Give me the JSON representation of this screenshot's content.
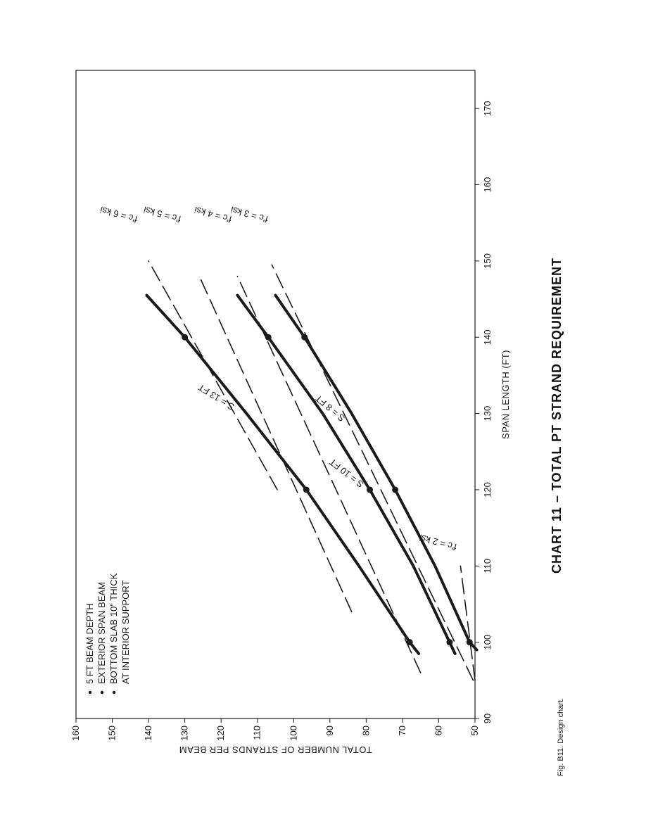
{
  "chart_data": {
    "type": "line",
    "title": "CHART 11 – TOTAL PT STRAND REQUIREMENT",
    "xlabel": "SPAN LENGTH (FT)",
    "ylabel": "TOTAL NUMBER OF STRANDS PER BEAM",
    "xlim": [
      90,
      175
    ],
    "ylim": [
      50,
      160
    ],
    "xticks": [
      90,
      100,
      110,
      120,
      130,
      140,
      150,
      160,
      170
    ],
    "yticks": [
      50,
      60,
      70,
      80,
      90,
      100,
      110,
      120,
      130,
      140,
      150,
      160
    ],
    "grid": false,
    "notes": [
      "5 FT BEAM DEPTH",
      "EXTERIOR SPAN BEAM",
      "BOTTOM SLAB 10\" THICK",
      "AT INTERIOR SUPPORT"
    ],
    "series": [
      {
        "name": "S = 13 FT",
        "style": "solid",
        "points": [
          [
            98.5,
            65.5
          ],
          [
            100,
            68
          ],
          [
            110,
            82
          ],
          [
            120,
            96.5
          ],
          [
            130,
            113
          ],
          [
            140,
            130
          ],
          [
            145.5,
            140.5
          ]
        ],
        "markers": [
          [
            100,
            68
          ],
          [
            120,
            96.5
          ],
          [
            140,
            130
          ]
        ]
      },
      {
        "name": "S = 10 FT",
        "style": "solid",
        "points": [
          [
            98.5,
            55.5
          ],
          [
            100,
            57
          ],
          [
            110,
            67
          ],
          [
            120,
            79
          ],
          [
            130,
            92
          ],
          [
            140,
            107
          ],
          [
            145.5,
            115.5
          ]
        ],
        "markers": [
          [
            100,
            57
          ],
          [
            120,
            79
          ],
          [
            140,
            107
          ]
        ]
      },
      {
        "name": "S = 8 FT",
        "style": "solid",
        "points": [
          [
            99,
            49.5
          ],
          [
            100,
            51.5
          ],
          [
            110,
            61
          ],
          [
            120,
            72
          ],
          [
            130,
            84
          ],
          [
            140,
            97
          ],
          [
            145.5,
            105
          ]
        ],
        "markers": [
          [
            100,
            51.5
          ],
          [
            120,
            72
          ],
          [
            140,
            97
          ]
        ]
      },
      {
        "name": "f'c = 6 ksi",
        "style": "dashed",
        "points": [
          [
            120,
            104.5
          ],
          [
            150,
            140
          ]
        ]
      },
      {
        "name": "f'c = 5 ksi",
        "style": "dashed",
        "points": [
          [
            104,
            84
          ],
          [
            148,
            126
          ]
        ]
      },
      {
        "name": "f'c = 4 ksi",
        "style": "dashed",
        "points": [
          [
            96,
            65
          ],
          [
            148,
            115.5
          ]
        ]
      },
      {
        "name": "f'c = 3 ksi",
        "style": "dashed",
        "points": [
          [
            95,
            50.5
          ],
          [
            149.5,
            106
          ]
        ]
      },
      {
        "name": "f'c = 2 ksi",
        "style": "dashed",
        "points": [
          [
            95,
            50
          ],
          [
            110,
            54
          ]
        ]
      }
    ]
  },
  "caption": "Fig. B11. Design chart.",
  "colors": {
    "ink": "#1a1a1a",
    "background": "#ffffff"
  }
}
